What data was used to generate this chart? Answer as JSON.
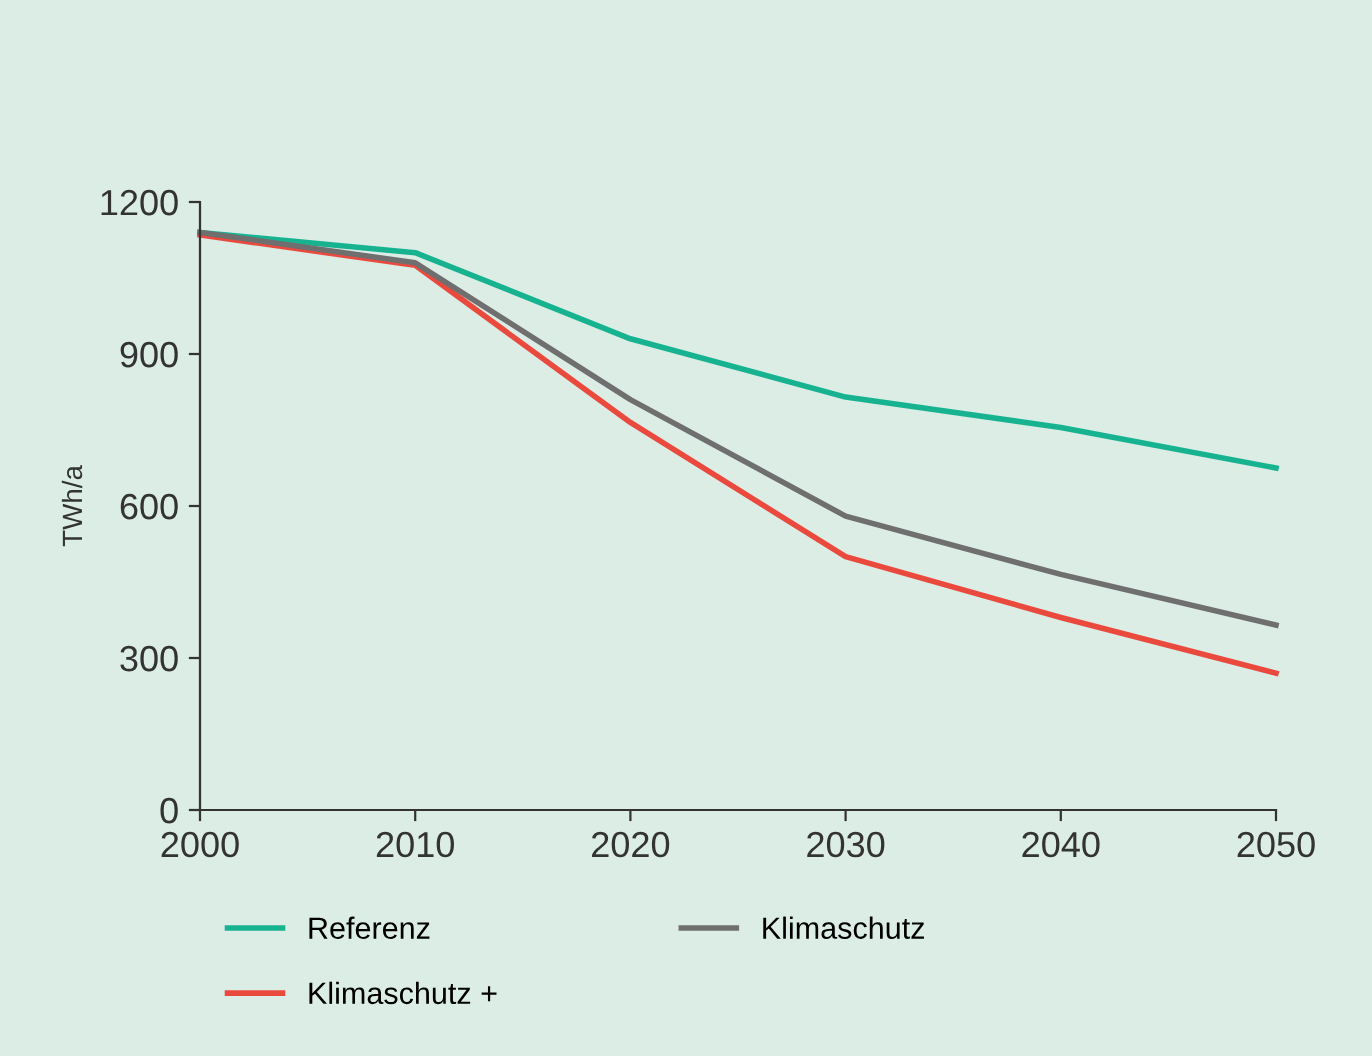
{
  "chart_data": {
    "type": "line",
    "ylabel": "TWh/a",
    "x": [
      2000,
      2010,
      2020,
      2030,
      2040,
      2050
    ],
    "series": [
      {
        "name": "Referenz",
        "color": "#17b391",
        "values": [
          1140,
          1100,
          930,
          815,
          755,
          675
        ]
      },
      {
        "name": "Klimaschutz +",
        "color": "#ea4a3e",
        "values": [
          1135,
          1075,
          765,
          500,
          380,
          270
        ]
      },
      {
        "name": "Klimaschutz",
        "color": "#6f6f6f",
        "values": [
          1140,
          1080,
          810,
          580,
          465,
          365
        ]
      }
    ],
    "xlim": [
      2000,
      2050
    ],
    "xticks": [
      2000,
      2010,
      2020,
      2030,
      2040,
      2050
    ],
    "ylim": [
      0,
      1200
    ],
    "yticks": [
      0,
      300,
      600,
      900,
      1200
    ],
    "grid": false,
    "legend": "bottom",
    "marker": "none",
    "line_style": "solid"
  }
}
